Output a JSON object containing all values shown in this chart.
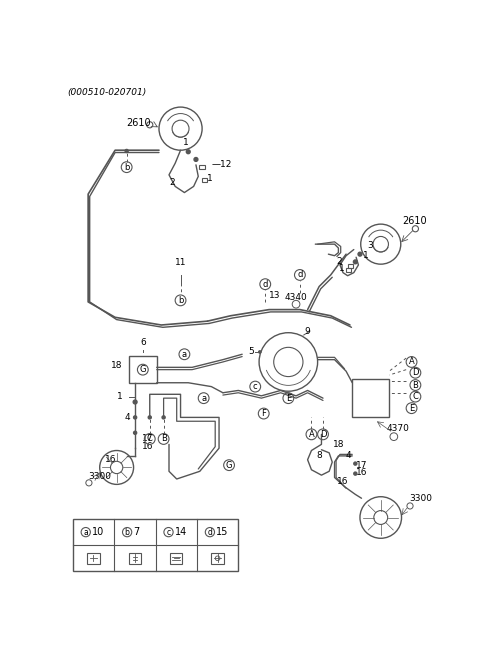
{
  "title": "(000510-020701)",
  "bg_color": "#ffffff",
  "line_color": "#555555",
  "text_color": "#000000",
  "fig_width": 4.8,
  "fig_height": 6.55,
  "dpi": 100,
  "legend_items": [
    {
      "symbol": "a",
      "num": "10"
    },
    {
      "symbol": "b",
      "num": "7"
    },
    {
      "symbol": "c",
      "num": "14"
    },
    {
      "symbol": "d",
      "num": "15"
    }
  ]
}
